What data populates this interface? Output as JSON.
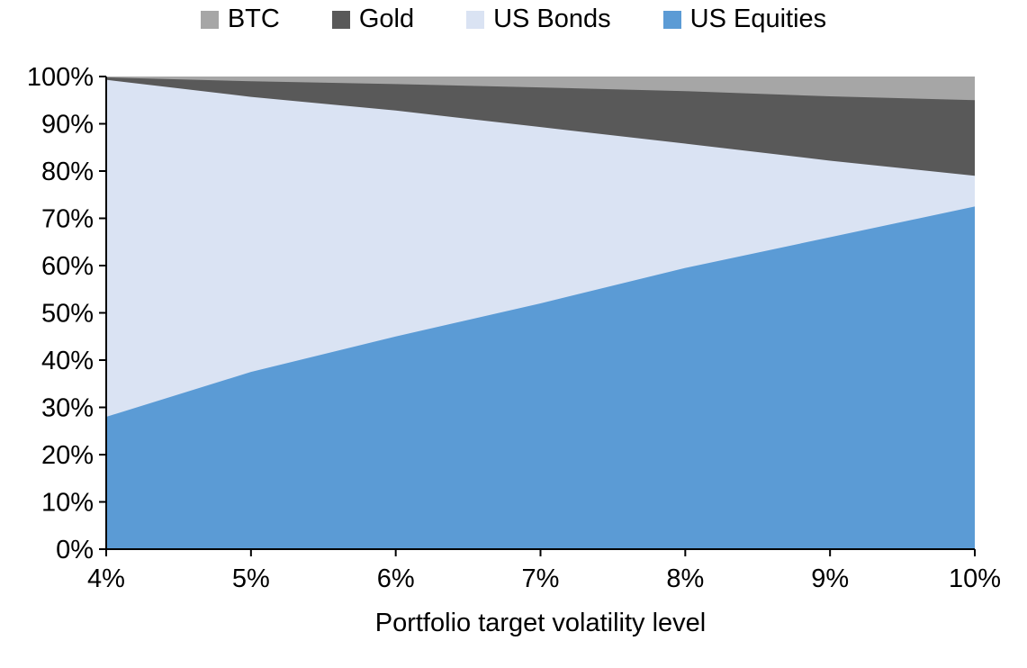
{
  "legend": {
    "items": [
      {
        "label": "BTC",
        "color": "#A6A6A6"
      },
      {
        "label": "Gold",
        "color": "#595959"
      },
      {
        "label": "US Bonds",
        "color": "#DAE3F3"
      },
      {
        "label": "US Equities",
        "color": "#5B9BD5"
      }
    ]
  },
  "chart_data": {
    "type": "area",
    "stacked": true,
    "title": "",
    "xlabel": "Portfolio target volatility level",
    "ylabel": "",
    "x": [
      4,
      5,
      6,
      7,
      8,
      9,
      10
    ],
    "x_tick_labels": [
      "4%",
      "5%",
      "6%",
      "7%",
      "8%",
      "9%",
      "10%"
    ],
    "y_tick_labels": [
      "0%",
      "10%",
      "20%",
      "30%",
      "40%",
      "50%",
      "60%",
      "70%",
      "80%",
      "90%",
      "100%"
    ],
    "ylim": [
      0,
      100
    ],
    "grid": false,
    "legend_position": "top",
    "series": [
      {
        "name": "US Equities",
        "color": "#5B9BD5",
        "values": [
          28.0,
          37.5,
          45.0,
          52.0,
          59.5,
          66.0,
          72.5
        ]
      },
      {
        "name": "US Bonds",
        "color": "#DAE3F3",
        "values": [
          71.3,
          58.2,
          47.8,
          37.3,
          26.3,
          16.2,
          6.5
        ]
      },
      {
        "name": "Gold",
        "color": "#595959",
        "values": [
          0.5,
          3.3,
          5.6,
          8.4,
          11.1,
          13.6,
          16.0
        ]
      },
      {
        "name": "BTC",
        "color": "#A6A6A6",
        "values": [
          0.2,
          1.0,
          1.6,
          2.3,
          3.1,
          4.2,
          5.0
        ]
      }
    ]
  }
}
